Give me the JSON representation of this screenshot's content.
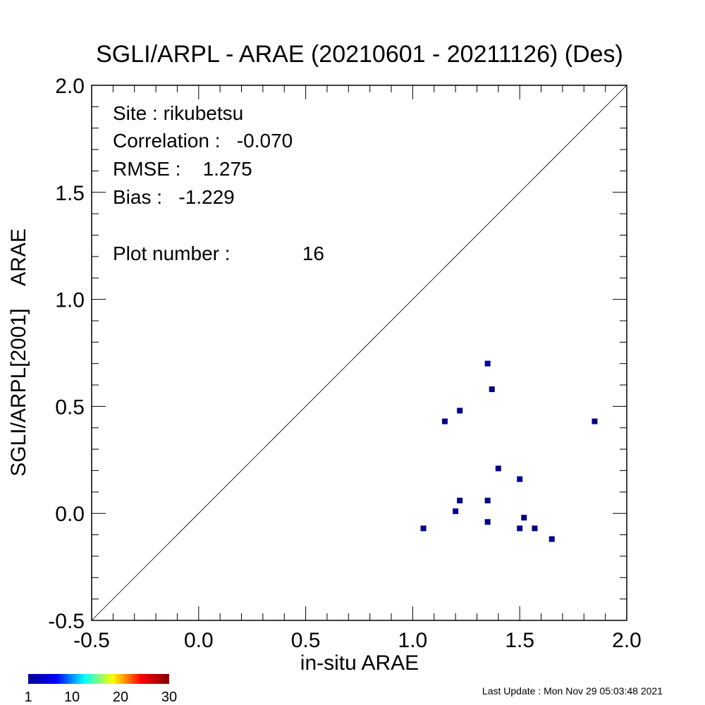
{
  "chart_data": {
    "type": "scatter",
    "title": "SGLI/ARPL - ARAE (20210601 - 20211126) (Des)",
    "xlabel": "in-situ ARAE",
    "ylabel": "SGLI/ARPL[2001]    ARAE",
    "xlim": [
      -0.5,
      2.0
    ],
    "ylim": [
      -0.5,
      2.0
    ],
    "xticks": [
      "-0.5",
      "0.0",
      "0.5",
      "1.0",
      "1.5",
      "2.0"
    ],
    "yticks": [
      "-0.5",
      "0.0",
      "0.5",
      "1.0",
      "1.5",
      "2.0"
    ],
    "x_tick_values": [
      -0.5,
      0.0,
      0.5,
      1.0,
      1.5,
      2.0
    ],
    "y_tick_values": [
      -0.5,
      0.0,
      0.5,
      1.0,
      1.5,
      2.0
    ],
    "grid": false,
    "reference_line": "1:1",
    "marker_color": "#000080",
    "points": [
      {
        "x": 1.05,
        "y": -0.07
      },
      {
        "x": 1.15,
        "y": 0.43
      },
      {
        "x": 1.2,
        "y": 0.01
      },
      {
        "x": 1.22,
        "y": 0.48
      },
      {
        "x": 1.22,
        "y": 0.06
      },
      {
        "x": 1.35,
        "y": 0.7
      },
      {
        "x": 1.35,
        "y": 0.06
      },
      {
        "x": 1.35,
        "y": -0.04
      },
      {
        "x": 1.37,
        "y": 0.58
      },
      {
        "x": 1.4,
        "y": 0.21
      },
      {
        "x": 1.5,
        "y": 0.16
      },
      {
        "x": 1.5,
        "y": -0.07
      },
      {
        "x": 1.52,
        "y": -0.02
      },
      {
        "x": 1.57,
        "y": -0.07
      },
      {
        "x": 1.65,
        "y": -0.12
      },
      {
        "x": 1.85,
        "y": 0.43
      }
    ],
    "stats": {
      "site": "Site : rikubetsu",
      "correlation": "Correlation :   -0.070",
      "rmse": "RMSE :    1.275",
      "bias": "Bias :   -1.229",
      "plot_number_label": "Plot number :",
      "plot_number_value": "16"
    },
    "colorbar": {
      "ticks": [
        "1",
        "10",
        "20",
        "30"
      ],
      "tick_values": [
        1,
        10,
        20,
        30
      ],
      "range": [
        1,
        30
      ],
      "colors": [
        "#00008f",
        "#0000ff",
        "#00ffff",
        "#ffff00",
        "#ff0000",
        "#800000"
      ]
    }
  },
  "footer": {
    "last_update": "Last Update : Mon Nov 29 05:03:48 2021"
  }
}
